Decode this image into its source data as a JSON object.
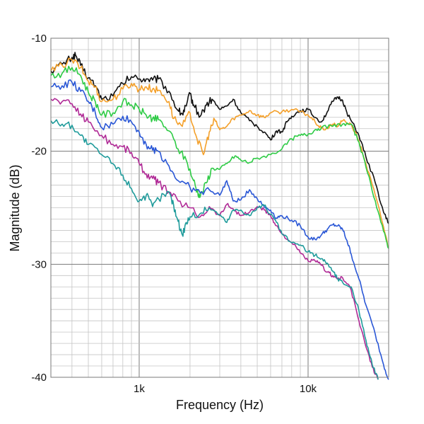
{
  "chart_data": {
    "type": "line",
    "xlabel": "Frequency (Hz)",
    "ylabel": "Magnitude (dB)",
    "x_scale": "log",
    "xlim": [
      300,
      30000
    ],
    "ylim": [
      -40,
      -10
    ],
    "grid": true,
    "x_tick_labels": [
      {
        "value": 1000,
        "label": "1k"
      },
      {
        "value": 10000,
        "label": "10k"
      }
    ],
    "y_tick_labels": [
      {
        "value": -10,
        "label": "-10"
      },
      {
        "value": -20,
        "label": "-20"
      },
      {
        "value": -30,
        "label": "-30"
      },
      {
        "value": -40,
        "label": "-40"
      }
    ],
    "series": [
      {
        "color": "#111111",
        "points": [
          [
            300,
            -12.9
          ],
          [
            350,
            -12.3
          ],
          [
            400,
            -11.7
          ],
          [
            420,
            -11.5
          ],
          [
            450,
            -12.4
          ],
          [
            500,
            -13.5
          ],
          [
            550,
            -14.2
          ],
          [
            600,
            -15.4
          ],
          [
            700,
            -15.1
          ],
          [
            800,
            -14.0
          ],
          [
            900,
            -13.4
          ],
          [
            1000,
            -13.6
          ],
          [
            1100,
            -13.6
          ],
          [
            1200,
            -13.7
          ],
          [
            1300,
            -13.6
          ],
          [
            1500,
            -14.7
          ],
          [
            1700,
            -16.4
          ],
          [
            1800,
            -16.7
          ],
          [
            1900,
            -16.0
          ],
          [
            2000,
            -14.9
          ],
          [
            2100,
            -15.9
          ],
          [
            2300,
            -16.9
          ],
          [
            2500,
            -15.9
          ],
          [
            2700,
            -15.4
          ],
          [
            3000,
            -16.3
          ],
          [
            3300,
            -16.0
          ],
          [
            3600,
            -15.4
          ],
          [
            4000,
            -16.6
          ],
          [
            4500,
            -17.3
          ],
          [
            5000,
            -17.8
          ],
          [
            5500,
            -18.3
          ],
          [
            6000,
            -19.0
          ],
          [
            6500,
            -18.2
          ],
          [
            7000,
            -18.3
          ],
          [
            7500,
            -17.4
          ],
          [
            8000,
            -16.9
          ],
          [
            9000,
            -16.4
          ],
          [
            10000,
            -16.3
          ],
          [
            11000,
            -17.0
          ],
          [
            12000,
            -17.4
          ],
          [
            13000,
            -16.5
          ],
          [
            14000,
            -15.6
          ],
          [
            15000,
            -15.2
          ],
          [
            16000,
            -15.5
          ],
          [
            17000,
            -16.6
          ],
          [
            18000,
            -17.3
          ],
          [
            20000,
            -18.6
          ],
          [
            22000,
            -20.5
          ],
          [
            25000,
            -22.8
          ],
          [
            28000,
            -25.4
          ],
          [
            30000,
            -26.4
          ]
        ]
      },
      {
        "color": "#f4a02a",
        "points": [
          [
            300,
            -12.9
          ],
          [
            350,
            -12.4
          ],
          [
            400,
            -11.9
          ],
          [
            450,
            -12.6
          ],
          [
            500,
            -13.8
          ],
          [
            550,
            -14.3
          ],
          [
            600,
            -15.6
          ],
          [
            700,
            -15.4
          ],
          [
            800,
            -14.5
          ],
          [
            900,
            -14.0
          ],
          [
            1000,
            -14.5
          ],
          [
            1100,
            -14.3
          ],
          [
            1200,
            -14.5
          ],
          [
            1300,
            -14.6
          ],
          [
            1500,
            -15.6
          ],
          [
            1600,
            -17.1
          ],
          [
            1800,
            -17.8
          ],
          [
            2000,
            -16.6
          ],
          [
            2200,
            -18.9
          ],
          [
            2400,
            -20.3
          ],
          [
            2600,
            -18.3
          ],
          [
            2800,
            -17.2
          ],
          [
            3000,
            -18.1
          ],
          [
            3300,
            -17.8
          ],
          [
            3600,
            -17.1
          ],
          [
            4000,
            -16.8
          ],
          [
            4500,
            -16.4
          ],
          [
            5000,
            -16.8
          ],
          [
            5500,
            -17.0
          ],
          [
            6000,
            -16.6
          ],
          [
            7000,
            -16.5
          ],
          [
            8000,
            -16.3
          ],
          [
            9000,
            -16.5
          ],
          [
            10000,
            -16.8
          ],
          [
            11000,
            -17.4
          ],
          [
            12000,
            -18.0
          ],
          [
            13000,
            -18.0
          ],
          [
            14000,
            -17.6
          ],
          [
            15000,
            -17.8
          ],
          [
            16000,
            -17.3
          ],
          [
            18000,
            -17.6
          ],
          [
            20000,
            -19.1
          ],
          [
            22000,
            -21.1
          ],
          [
            25000,
            -23.9
          ],
          [
            28000,
            -26.7
          ],
          [
            30000,
            -28.6
          ]
        ]
      },
      {
        "color": "#2ecb45",
        "points": [
          [
            300,
            -13.3
          ],
          [
            350,
            -13.1
          ],
          [
            400,
            -12.6
          ],
          [
            450,
            -13.3
          ],
          [
            500,
            -14.8
          ],
          [
            550,
            -15.6
          ],
          [
            600,
            -16.8
          ],
          [
            700,
            -16.6
          ],
          [
            800,
            -15.6
          ],
          [
            900,
            -15.9
          ],
          [
            1000,
            -16.3
          ],
          [
            1100,
            -16.8
          ],
          [
            1200,
            -17.1
          ],
          [
            1300,
            -17.2
          ],
          [
            1500,
            -18.2
          ],
          [
            1700,
            -19.8
          ],
          [
            1900,
            -20.8
          ],
          [
            2100,
            -22.6
          ],
          [
            2200,
            -23.5
          ],
          [
            2300,
            -24.0
          ],
          [
            2500,
            -22.8
          ],
          [
            2700,
            -21.5
          ],
          [
            3000,
            -21.6
          ],
          [
            3300,
            -21.1
          ],
          [
            3700,
            -20.4
          ],
          [
            4000,
            -20.8
          ],
          [
            4500,
            -21.0
          ],
          [
            5000,
            -20.6
          ],
          [
            6000,
            -20.3
          ],
          [
            7000,
            -19.8
          ],
          [
            8000,
            -18.9
          ],
          [
            9000,
            -18.6
          ],
          [
            10000,
            -18.5
          ],
          [
            11000,
            -18.1
          ],
          [
            12000,
            -17.9
          ],
          [
            14000,
            -17.8
          ],
          [
            16000,
            -17.6
          ],
          [
            18000,
            -17.6
          ],
          [
            20000,
            -19.2
          ],
          [
            22000,
            -21.4
          ],
          [
            25000,
            -24.4
          ],
          [
            28000,
            -27.1
          ],
          [
            30000,
            -28.6
          ]
        ]
      },
      {
        "color": "#2a57d6",
        "points": [
          [
            300,
            -14.3
          ],
          [
            350,
            -14.2
          ],
          [
            400,
            -13.9
          ],
          [
            450,
            -14.7
          ],
          [
            500,
            -15.6
          ],
          [
            550,
            -16.6
          ],
          [
            600,
            -17.9
          ],
          [
            700,
            -17.6
          ],
          [
            800,
            -16.9
          ],
          [
            900,
            -17.4
          ],
          [
            1000,
            -18.3
          ],
          [
            1100,
            -19.4
          ],
          [
            1200,
            -19.9
          ],
          [
            1300,
            -20.0
          ],
          [
            1500,
            -21.3
          ],
          [
            1700,
            -22.6
          ],
          [
            2000,
            -23.2
          ],
          [
            2300,
            -23.7
          ],
          [
            2600,
            -23.4
          ],
          [
            3000,
            -23.9
          ],
          [
            3300,
            -22.6
          ],
          [
            3600,
            -24.4
          ],
          [
            4000,
            -24.3
          ],
          [
            4500,
            -23.4
          ],
          [
            5000,
            -24.2
          ],
          [
            5500,
            -24.9
          ],
          [
            6000,
            -25.2
          ],
          [
            6500,
            -25.9
          ],
          [
            7000,
            -25.7
          ],
          [
            8000,
            -26.1
          ],
          [
            9000,
            -26.6
          ],
          [
            10000,
            -27.6
          ],
          [
            11000,
            -27.8
          ],
          [
            12000,
            -27.4
          ],
          [
            13000,
            -26.9
          ],
          [
            14000,
            -26.5
          ],
          [
            15000,
            -26.6
          ],
          [
            16000,
            -26.9
          ],
          [
            17000,
            -27.9
          ],
          [
            18000,
            -29.1
          ],
          [
            20000,
            -31.3
          ],
          [
            22000,
            -33.6
          ],
          [
            25000,
            -36.2
          ],
          [
            28000,
            -38.9
          ],
          [
            30000,
            -40.2
          ]
        ]
      },
      {
        "color": "#b02a96",
        "points": [
          [
            300,
            -15.4
          ],
          [
            350,
            -15.6
          ],
          [
            400,
            -15.8
          ],
          [
            450,
            -16.7
          ],
          [
            500,
            -17.4
          ],
          [
            600,
            -18.6
          ],
          [
            700,
            -19.4
          ],
          [
            800,
            -19.6
          ],
          [
            900,
            -20.1
          ],
          [
            1000,
            -21.1
          ],
          [
            1100,
            -22.0
          ],
          [
            1200,
            -22.4
          ],
          [
            1300,
            -22.8
          ],
          [
            1500,
            -23.6
          ],
          [
            1700,
            -24.4
          ],
          [
            2000,
            -25.0
          ],
          [
            2300,
            -25.8
          ],
          [
            2600,
            -24.9
          ],
          [
            3000,
            -25.7
          ],
          [
            3300,
            -24.7
          ],
          [
            3600,
            -25.1
          ],
          [
            4000,
            -25.7
          ],
          [
            4500,
            -25.4
          ],
          [
            5000,
            -24.9
          ],
          [
            5500,
            -25.2
          ],
          [
            6000,
            -25.7
          ],
          [
            6500,
            -26.6
          ],
          [
            7000,
            -27.3
          ],
          [
            8000,
            -28.1
          ],
          [
            9000,
            -29.0
          ],
          [
            10000,
            -29.7
          ],
          [
            11000,
            -29.7
          ],
          [
            12000,
            -30.1
          ],
          [
            13000,
            -30.7
          ],
          [
            14000,
            -31.0
          ],
          [
            15000,
            -31.3
          ],
          [
            16000,
            -31.2
          ],
          [
            18000,
            -32.3
          ],
          [
            20000,
            -35.0
          ],
          [
            22000,
            -37.3
          ],
          [
            24000,
            -39.1
          ],
          [
            26000,
            -40.2
          ]
        ]
      },
      {
        "color": "#1f9b9b",
        "points": [
          [
            300,
            -17.3
          ],
          [
            350,
            -17.6
          ],
          [
            400,
            -17.7
          ],
          [
            450,
            -18.6
          ],
          [
            500,
            -19.4
          ],
          [
            600,
            -20.3
          ],
          [
            700,
            -21.1
          ],
          [
            800,
            -22.1
          ],
          [
            900,
            -23.3
          ],
          [
            1000,
            -24.4
          ],
          [
            1100,
            -23.9
          ],
          [
            1200,
            -24.9
          ],
          [
            1300,
            -24.2
          ],
          [
            1500,
            -23.6
          ],
          [
            1600,
            -24.8
          ],
          [
            1700,
            -26.2
          ],
          [
            1800,
            -27.4
          ],
          [
            1900,
            -26.3
          ],
          [
            2000,
            -25.8
          ],
          [
            2300,
            -25.5
          ],
          [
            2600,
            -25.0
          ],
          [
            3000,
            -25.6
          ],
          [
            3300,
            -26.3
          ],
          [
            3600,
            -25.2
          ],
          [
            4000,
            -25.2
          ],
          [
            4500,
            -25.7
          ],
          [
            5000,
            -25.0
          ],
          [
            5500,
            -24.8
          ],
          [
            6000,
            -25.6
          ],
          [
            6500,
            -26.3
          ],
          [
            7000,
            -27.3
          ],
          [
            8000,
            -28.1
          ],
          [
            9000,
            -28.3
          ],
          [
            10000,
            -28.9
          ],
          [
            11000,
            -29.2
          ],
          [
            12000,
            -29.5
          ],
          [
            13000,
            -29.9
          ],
          [
            14000,
            -30.6
          ],
          [
            15000,
            -31.3
          ],
          [
            16000,
            -31.6
          ],
          [
            18000,
            -32.0
          ],
          [
            20000,
            -34.1
          ],
          [
            22000,
            -36.7
          ],
          [
            24000,
            -38.9
          ],
          [
            26000,
            -40.2
          ]
        ]
      }
    ]
  }
}
